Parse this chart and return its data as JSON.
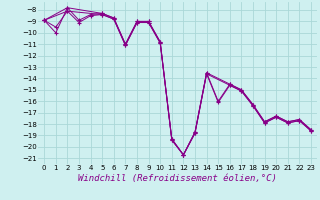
{
  "background_color": "#cff0f0",
  "grid_color": "#aad8d8",
  "line_color": "#880088",
  "xlabel": "Windchill (Refroidissement éolien,°C)",
  "xlabel_fontsize": 6.5,
  "xlim": [
    -0.5,
    23.5
  ],
  "ylim": [
    -21.5,
    -7.3
  ],
  "yticks": [
    -8,
    -9,
    -10,
    -11,
    -12,
    -13,
    -14,
    -15,
    -16,
    -17,
    -18,
    -19,
    -20,
    -21
  ],
  "xticks": [
    0,
    1,
    2,
    3,
    4,
    5,
    6,
    7,
    8,
    9,
    10,
    11,
    12,
    13,
    14,
    15,
    16,
    17,
    18,
    19,
    20,
    21,
    22,
    23
  ],
  "series": [
    {
      "x": [
        0,
        1,
        2,
        3,
        4,
        5,
        6,
        7,
        8,
        9,
        10,
        11,
        12,
        13,
        14,
        15,
        16,
        17,
        18,
        19,
        20,
        21,
        22,
        23
      ],
      "y": [
        -8.9,
        -10.0,
        -7.8,
        -8.9,
        -8.4,
        -8.3,
        -8.7,
        -11.0,
        -9.0,
        -9.0,
        -10.8,
        -19.3,
        -20.7,
        -18.7,
        -13.5,
        -16.0,
        -14.5,
        -15.0,
        -16.3,
        -17.8,
        -17.3,
        -17.8,
        -17.6,
        -18.5
      ]
    },
    {
      "x": [
        0,
        1,
        2,
        3,
        4,
        5,
        6,
        7,
        8,
        9,
        10,
        11,
        12,
        13,
        14,
        15,
        16,
        17,
        18,
        19,
        20,
        21,
        22,
        23
      ],
      "y": [
        -8.9,
        -9.5,
        -8.1,
        -9.1,
        -8.5,
        -8.4,
        -8.8,
        -11.1,
        -9.1,
        -9.1,
        -10.9,
        -19.4,
        -20.7,
        -18.8,
        -13.6,
        -16.1,
        -14.6,
        -15.1,
        -16.4,
        -17.9,
        -17.4,
        -17.9,
        -17.7,
        -18.6
      ]
    },
    {
      "x": [
        0,
        2,
        5,
        6,
        7,
        8,
        9,
        10,
        11,
        12,
        13,
        14,
        16,
        17,
        18,
        19,
        20,
        21,
        22,
        23
      ],
      "y": [
        -8.9,
        -7.8,
        -8.3,
        -8.7,
        -11.0,
        -9.0,
        -9.0,
        -10.8,
        -19.3,
        -20.7,
        -18.7,
        -13.5,
        -14.5,
        -15.0,
        -16.3,
        -17.8,
        -17.3,
        -17.8,
        -17.6,
        -18.5
      ]
    },
    {
      "x": [
        0,
        2,
        5,
        6,
        7,
        8,
        9,
        10,
        11,
        12,
        13,
        14,
        16,
        17,
        18,
        19,
        20,
        21,
        22,
        23
      ],
      "y": [
        -8.9,
        -8.1,
        -8.4,
        -8.8,
        -11.1,
        -9.1,
        -9.1,
        -10.9,
        -19.4,
        -20.7,
        -18.8,
        -13.6,
        -14.6,
        -15.1,
        -16.4,
        -17.9,
        -17.4,
        -17.9,
        -17.7,
        -18.6
      ]
    }
  ]
}
